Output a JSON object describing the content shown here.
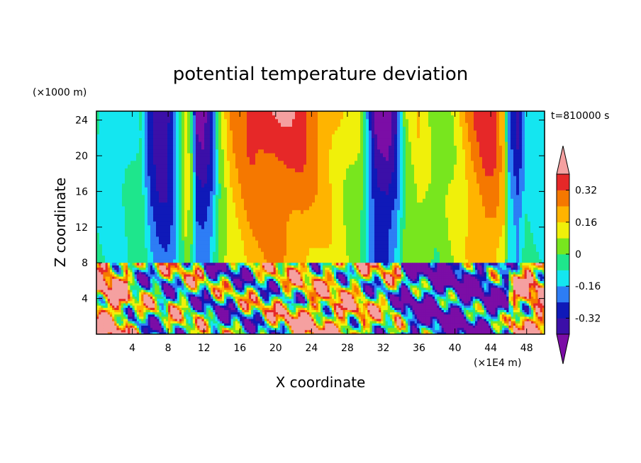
{
  "chart_data": {
    "type": "heatmap",
    "title": "potential temperature deviation",
    "xlabel": "X coordinate",
    "ylabel": "Z coordinate",
    "x_unit": "(×1E4 m)",
    "y_unit": "(×1000 m)",
    "time_label": "t=810000 s",
    "xlim": [
      0,
      50
    ],
    "ylim": [
      0,
      25
    ],
    "x_ticks": [
      4,
      8,
      12,
      16,
      20,
      24,
      28,
      32,
      36,
      40,
      44,
      48
    ],
    "y_ticks": [
      4,
      8,
      12,
      16,
      20,
      24
    ],
    "interface_z": 8,
    "colorbar": {
      "levels": [
        -0.4,
        -0.32,
        -0.24,
        -0.16,
        -0.08,
        0,
        0.08,
        0.16,
        0.24,
        0.32,
        0.4
      ],
      "tick_labels": [
        "-0.32",
        "-0.16",
        "0",
        "0.16",
        "0.32"
      ],
      "tick_values": [
        -0.32,
        -0.16,
        0,
        0.16,
        0.32
      ],
      "colors": [
        "#7B0DA6",
        "#3B0FA8",
        "#0F19B8",
        "#2D7DF5",
        "#14E6F0",
        "#1EE68C",
        "#78E61E",
        "#F0F00A",
        "#FFB400",
        "#F57800",
        "#E62828",
        "#F5A0A0"
      ]
    },
    "upper_layer_profile": {
      "x": [
        0,
        1,
        3,
        5,
        6,
        7,
        7.8,
        8.5,
        9.4,
        10,
        10.6,
        11.2,
        12,
        12.8,
        13.8,
        15,
        17,
        19,
        21,
        23,
        24,
        26,
        28,
        29.5,
        31,
        31.5,
        32.5,
        33.5,
        34.5,
        36,
        38,
        40,
        42,
        43.5,
        44.5,
        45.5,
        46,
        47,
        48,
        49,
        50
      ],
      "values": [
        -0.1,
        -0.13,
        -0.14,
        -0.05,
        -0.3,
        -0.4,
        -0.4,
        -0.3,
        -0.05,
        0.15,
        0.0,
        -0.4,
        -0.42,
        -0.3,
        0.05,
        0.22,
        0.35,
        0.4,
        0.4,
        0.36,
        0.3,
        0.22,
        0.12,
        0.05,
        -0.4,
        -0.45,
        -0.45,
        -0.3,
        0.05,
        0.15,
        0.02,
        0.12,
        0.3,
        0.38,
        0.35,
        0.2,
        -0.2,
        -0.33,
        -0.1,
        -0.14,
        -0.14
      ]
    }
  }
}
